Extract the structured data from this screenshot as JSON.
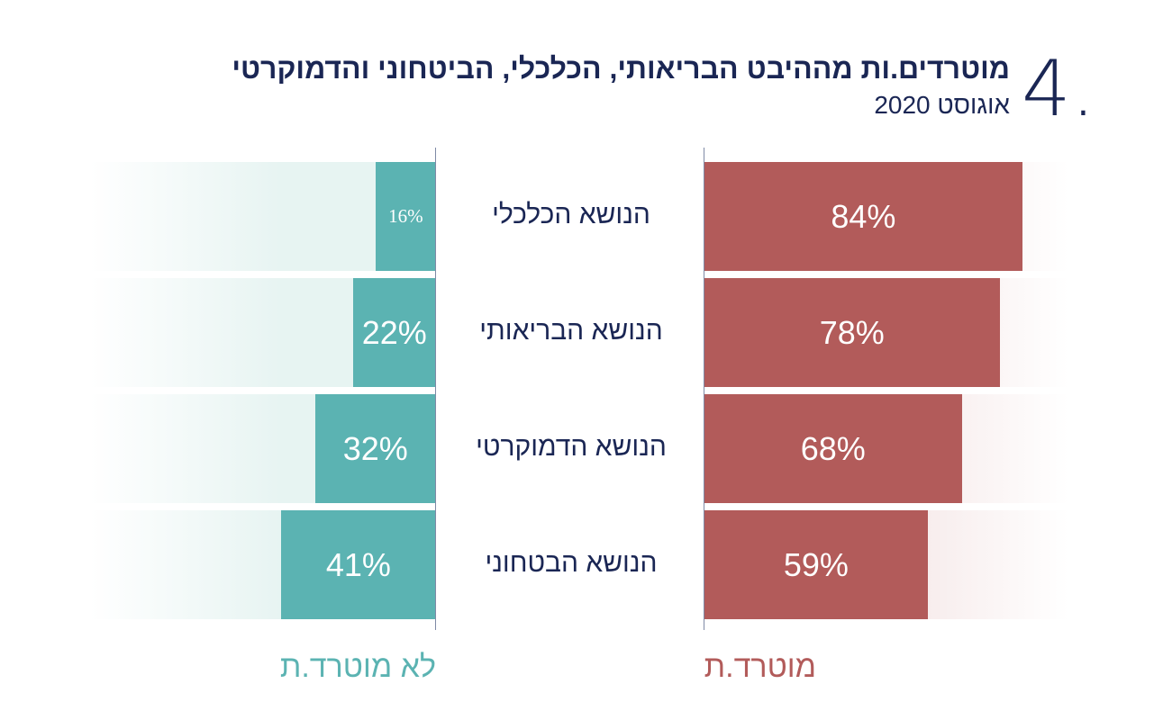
{
  "header": {
    "number": "4.",
    "title": "מוטרדים.ות מההיבט הבריאותי, הכלכלי, הביטחוני והדמוקרטי",
    "subtitle": "אוגוסט 2020"
  },
  "colors": {
    "worried": "#b25b5a",
    "not_worried": "#5bb3b2",
    "text": "#1a2654"
  },
  "chart_data": {
    "type": "bar",
    "orientation": "horizontal-diverging",
    "categories": [
      "הנושא הכלכלי",
      "הנושא הבריאותי",
      "הנושא הדמוקרטי",
      "הנושא הבטחוני"
    ],
    "series": [
      {
        "name": "מוטרד.ת",
        "values": [
          84,
          78,
          68,
          59
        ],
        "labels": [
          "84%",
          "78%",
          "68%",
          "59%"
        ]
      },
      {
        "name": "לא מוטרד.ת",
        "values": [
          16,
          22,
          32,
          41
        ],
        "labels": [
          "16%",
          "22%",
          "32%",
          "41%"
        ]
      }
    ],
    "xlim": [
      0,
      100
    ],
    "legend_placement": "bottom"
  }
}
